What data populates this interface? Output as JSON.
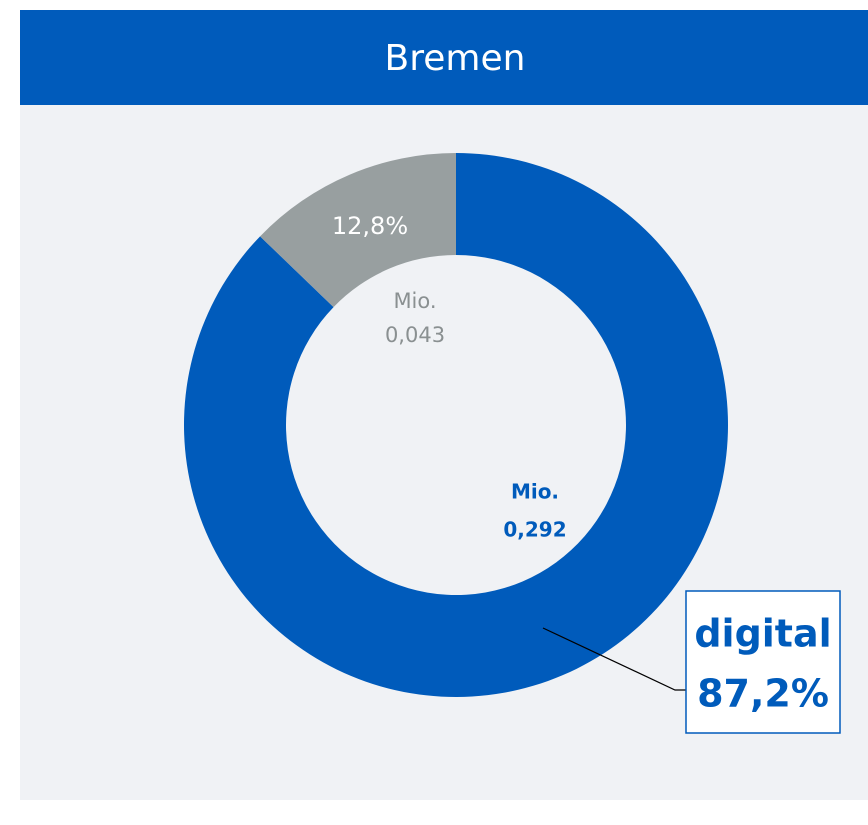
{
  "chart_data": {
    "type": "pie",
    "title": "Bremen",
    "categories": [
      "digital",
      null
    ],
    "values": [
      87.2,
      12.8
    ],
    "value_labels": [
      "87,2%",
      "12,8%"
    ],
    "colors": [
      "#005bbb",
      "#989fa0"
    ],
    "amount_unit": "Mio.",
    "amounts": [
      0.292,
      0.043
    ],
    "amount_labels": [
      "0,292",
      "0,043"
    ]
  }
}
